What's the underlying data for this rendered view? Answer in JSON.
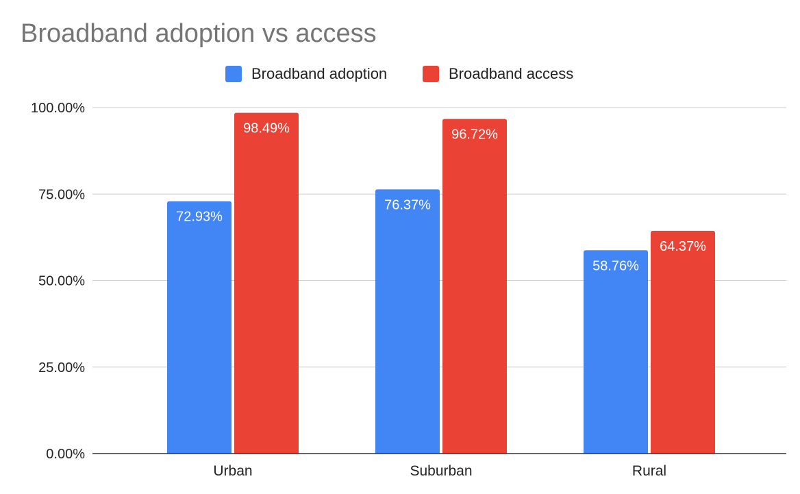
{
  "chart_data": {
    "type": "bar",
    "title": "Broadband adoption vs access",
    "categories": [
      "Urban",
      "Suburban",
      "Rural"
    ],
    "series": [
      {
        "name": "Broadband adoption",
        "values": [
          72.93,
          76.37,
          58.76
        ],
        "labels": [
          "72.93%",
          "76.37%",
          "58.76%"
        ],
        "color": "#4285f4"
      },
      {
        "name": "Broadband access",
        "values": [
          98.49,
          96.72,
          64.37
        ],
        "labels": [
          "98.49%",
          "96.72%",
          "64.37%"
        ],
        "color": "#ea4335"
      }
    ],
    "y_ticks": [
      0,
      25,
      50,
      75,
      100
    ],
    "y_tick_labels": [
      "0.00%",
      "25.00%",
      "50.00%",
      "75.00%",
      "100.00%"
    ],
    "ylim": [
      0,
      100
    ],
    "legend_position": "top-center",
    "grid": true
  }
}
